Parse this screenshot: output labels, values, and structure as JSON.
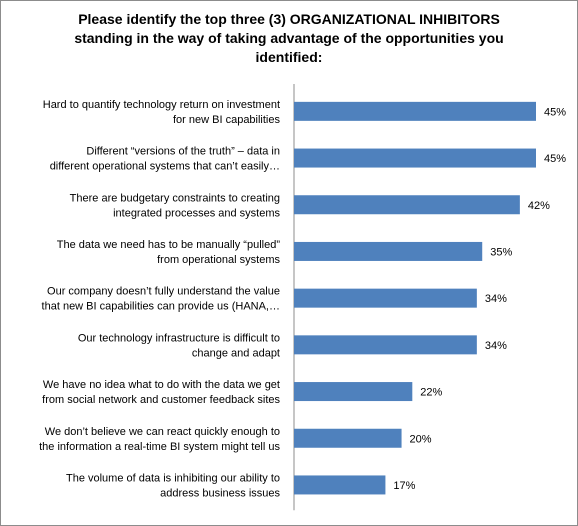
{
  "chart_data": {
    "type": "bar",
    "orientation": "horizontal",
    "title": "Please identify the top three (3) ORGANIZATIONAL INHIBITORS standing in the way of taking advantage of the opportunities you identified:",
    "title_lines": [
      "Please identify the top three (3) ORGANIZATIONAL INHIBITORS",
      "standing in the way of taking advantage of the opportunities you",
      "identified:"
    ],
    "categories": [
      [
        "Hard to quantify technology return on investment",
        "for new BI capabilities"
      ],
      [
        "Different “versions of the truth” – data in",
        "different operational systems that can’t easily…"
      ],
      [
        "There are budgetary constraints to creating",
        "integrated processes and systems"
      ],
      [
        "The data we need has to be manually “pulled”",
        "from operational systems"
      ],
      [
        "Our company doesn’t fully understand the value",
        "that new BI capabilities can provide us (HANA,…"
      ],
      [
        "Our technology infrastructure is difficult to",
        "change and adapt"
      ],
      [
        "We have no idea what to do with the data we get",
        "from social network and customer feedback sites"
      ],
      [
        "We don’t believe we can react quickly enough to",
        "the information a real-time BI system might tell us"
      ],
      [
        "The volume of data is inhibiting our ability to",
        "address business issues"
      ]
    ],
    "values": [
      45,
      45,
      42,
      35,
      34,
      34,
      22,
      20,
      17
    ],
    "value_labels": [
      "45%",
      "45%",
      "42%",
      "35%",
      "34%",
      "34%",
      "22%",
      "20%",
      "17%"
    ],
    "xlim": [
      0,
      45
    ],
    "bar_color": "#4f81bd",
    "grid": false,
    "legend": "none"
  }
}
